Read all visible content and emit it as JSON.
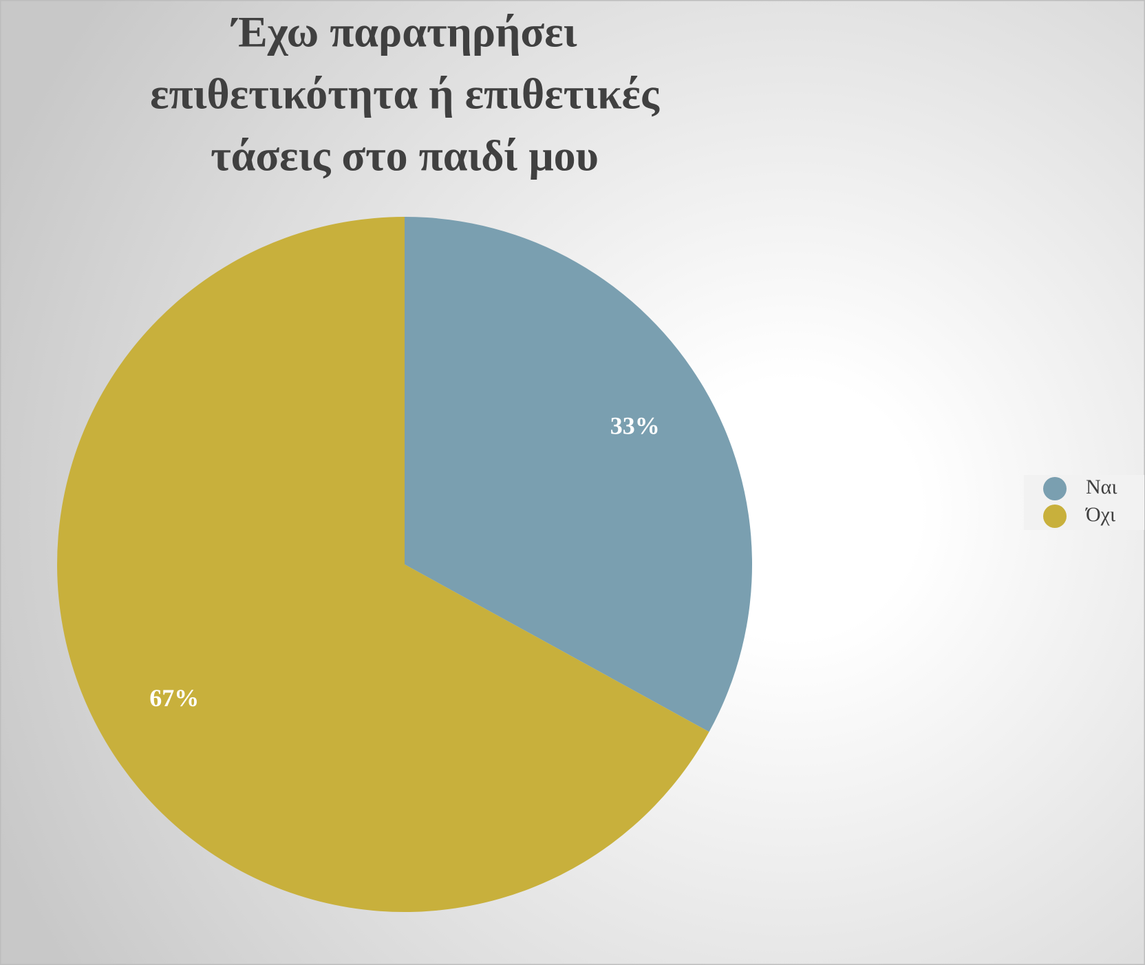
{
  "chart_data": {
    "type": "pie",
    "title": [
      "Έχω παρατηρήσει",
      "επιθετικότητα ή επιθετικές",
      "τάσεις στο παιδί μου"
    ],
    "categories": [
      "Ναι",
      "Όχι"
    ],
    "values": [
      33,
      67
    ],
    "value_labels": [
      "33%",
      "67%"
    ],
    "colors": [
      "#7a9fb0",
      "#c8b03c"
    ],
    "legend": "right"
  }
}
